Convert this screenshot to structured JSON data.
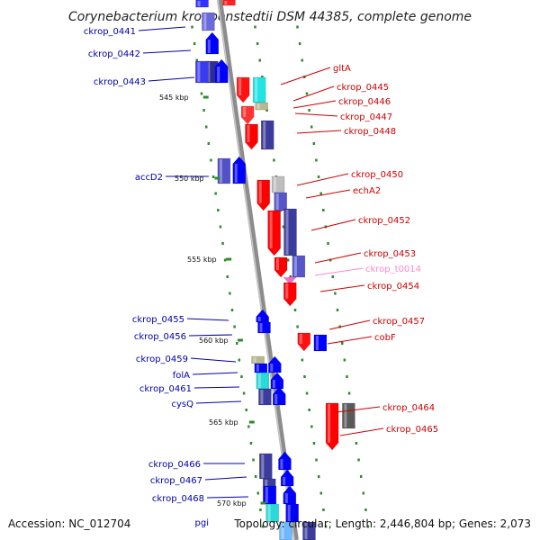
{
  "title": "Corynebacterium kroppenstedtii DSM 44385, complete genome",
  "footer": {
    "accession": "Accession: NC_012704",
    "summary": "Topology: circular; Length: 2,446,804 bp; Genes: 2,073"
  },
  "colors": {
    "forward_label": "#cc0000",
    "reverse_label": "#0000aa",
    "rna_label": "#ff88cc",
    "backbone": "#8c8c8c",
    "tick": "#2e8b2e"
  },
  "scale_labels": [
    "545 kbp",
    "550 kbp",
    "555 kbp",
    "560 kbp",
    "565 kbp",
    "570 kbp"
  ],
  "left_labels": [
    "ckrop_0441",
    "ckrop_0442",
    "ckrop_0443",
    "accD2",
    "ckrop_0455",
    "ckrop_0456",
    "ckrop_0459",
    "folA",
    "ckrop_0461",
    "cysQ",
    "ckrop_0466",
    "ckrop_0467",
    "ckrop_0468",
    "pgi"
  ],
  "right_labels": [
    "gltA",
    "ckrop_0445",
    "ckrop_0446",
    "ckrop_0447",
    "ckrop_0448",
    "ckrop_0450",
    "echA2",
    "ckrop_0452",
    "ckrop_0453",
    "ckrop_t0014",
    "ckrop_0454",
    "ckrop_0457",
    "cobF",
    "ckrop_0464",
    "ckrop_0465"
  ]
}
